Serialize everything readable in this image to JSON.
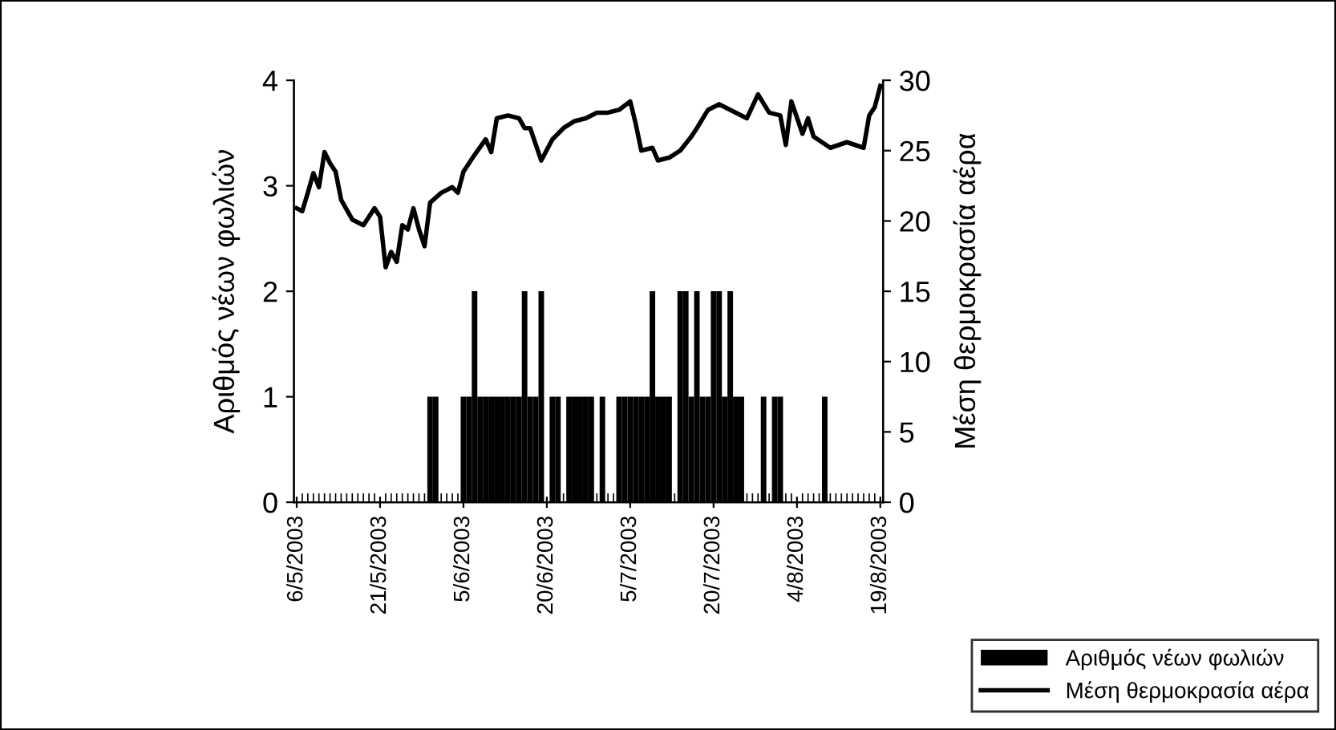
{
  "chart_data": {
    "type": "bar",
    "ylabel": "Αριθμός νέων φωλιών",
    "y2label": "Μέση θερμοκρασία αέρα",
    "x": [
      "2003-05-06",
      "2003-05-07",
      "2003-05-08",
      "2003-05-09",
      "2003-05-10",
      "2003-05-11",
      "2003-05-12",
      "2003-05-13",
      "2003-05-14",
      "2003-05-15",
      "2003-05-16",
      "2003-05-17",
      "2003-05-18",
      "2003-05-19",
      "2003-05-20",
      "2003-05-21",
      "2003-05-22",
      "2003-05-23",
      "2003-05-24",
      "2003-05-25",
      "2003-05-26",
      "2003-05-27",
      "2003-05-28",
      "2003-05-29",
      "2003-05-30",
      "2003-05-31",
      "2003-06-01",
      "2003-06-02",
      "2003-06-03",
      "2003-06-04",
      "2003-06-05",
      "2003-06-06",
      "2003-06-07",
      "2003-06-08",
      "2003-06-09",
      "2003-06-10",
      "2003-06-11",
      "2003-06-12",
      "2003-06-13",
      "2003-06-14",
      "2003-06-15",
      "2003-06-16",
      "2003-06-17",
      "2003-06-18",
      "2003-06-19",
      "2003-06-20",
      "2003-06-21",
      "2003-06-22",
      "2003-06-23",
      "2003-06-24",
      "2003-06-25",
      "2003-06-26",
      "2003-06-27",
      "2003-06-28",
      "2003-06-29",
      "2003-06-30",
      "2003-07-01",
      "2003-07-02",
      "2003-07-03",
      "2003-07-04",
      "2003-07-05",
      "2003-07-06",
      "2003-07-07",
      "2003-07-08",
      "2003-07-09",
      "2003-07-10",
      "2003-07-11",
      "2003-07-12",
      "2003-07-13",
      "2003-07-14",
      "2003-07-15",
      "2003-07-16",
      "2003-07-17",
      "2003-07-18",
      "2003-07-19",
      "2003-07-20",
      "2003-07-21",
      "2003-07-22",
      "2003-07-23",
      "2003-07-24",
      "2003-07-25",
      "2003-07-26",
      "2003-07-27",
      "2003-07-28",
      "2003-07-29",
      "2003-07-30",
      "2003-07-31",
      "2003-08-01",
      "2003-08-02",
      "2003-08-03",
      "2003-08-04",
      "2003-08-05",
      "2003-08-06",
      "2003-08-07",
      "2003-08-08",
      "2003-08-09",
      "2003-08-10",
      "2003-08-11",
      "2003-08-12",
      "2003-08-13",
      "2003-08-14",
      "2003-08-15",
      "2003-08-16",
      "2003-08-17",
      "2003-08-18",
      "2003-08-19"
    ],
    "series": [
      {
        "name": "Αριθμός νέων φωλιών",
        "color": "#000000",
        "values": [
          0,
          0,
          0,
          0,
          0,
          0,
          0,
          0,
          0,
          0,
          0,
          0,
          0,
          0,
          0,
          0,
          0,
          0,
          0,
          0,
          0,
          0,
          0,
          0,
          1,
          1,
          0,
          0,
          0,
          0,
          1,
          1,
          2,
          1,
          1,
          1,
          1,
          1,
          1,
          1,
          1,
          2,
          1,
          1,
          2,
          0,
          1,
          1,
          0,
          1,
          1,
          1,
          1,
          1,
          0,
          1,
          0,
          0,
          1,
          1,
          1,
          1,
          1,
          1,
          2,
          1,
          1,
          1,
          0,
          2,
          2,
          1,
          2,
          1,
          1,
          2,
          2,
          1,
          2,
          1,
          1,
          0,
          0,
          0,
          1,
          0,
          1,
          1,
          0,
          0,
          0,
          0,
          0,
          0,
          0,
          1,
          0,
          0,
          0,
          0,
          0,
          0,
          0,
          0,
          0,
          0
        ]
      },
      {
        "name": "Μέση θερμοκρασία αέρα",
        "type": "line",
        "axis": "y2",
        "color": "#000000",
        "x": [
          "2003-05-06",
          "2003-05-07",
          "2003-05-08",
          "2003-05-09",
          "2003-05-10",
          "2003-05-11",
          "2003-05-12",
          "2003-05-13",
          "2003-05-14",
          "2003-05-16",
          "2003-05-18",
          "2003-05-20",
          "2003-05-21",
          "2003-05-22",
          "2003-05-23",
          "2003-05-24",
          "2003-05-25",
          "2003-05-26",
          "2003-05-27",
          "2003-05-28",
          "2003-05-29",
          "2003-05-30",
          "2003-06-01",
          "2003-06-03",
          "2003-06-04",
          "2003-06-05",
          "2003-06-07",
          "2003-06-09",
          "2003-06-10",
          "2003-06-11",
          "2003-06-13",
          "2003-06-15",
          "2003-06-16",
          "2003-06-17",
          "2003-06-19",
          "2003-06-21",
          "2003-06-23",
          "2003-06-25",
          "2003-06-27",
          "2003-06-29",
          "2003-07-01",
          "2003-07-03",
          "2003-07-05",
          "2003-07-06",
          "2003-07-07",
          "2003-07-09",
          "2003-07-10",
          "2003-07-12",
          "2003-07-14",
          "2003-07-16",
          "2003-07-17",
          "2003-07-19",
          "2003-07-21",
          "2003-07-23",
          "2003-07-26",
          "2003-07-28",
          "2003-07-30",
          "2003-08-01",
          "2003-08-02",
          "2003-08-03",
          "2003-08-05",
          "2003-08-06",
          "2003-08-07",
          "2003-08-10",
          "2003-08-13",
          "2003-08-16",
          "2003-08-17",
          "2003-08-18",
          "2003-08-19"
        ],
        "values": [
          20.9,
          20.7,
          22.0,
          23.4,
          22.4,
          24.9,
          24.1,
          23.5,
          21.5,
          20.1,
          19.7,
          20.9,
          20.3,
          16.7,
          17.8,
          17.1,
          19.7,
          19.4,
          20.9,
          19.4,
          18.2,
          21.3,
          22.0,
          22.4,
          22.0,
          23.5,
          24.7,
          25.8,
          24.9,
          27.3,
          27.5,
          27.3,
          26.6,
          26.6,
          24.3,
          25.8,
          26.6,
          27.1,
          27.3,
          27.7,
          27.7,
          27.9,
          28.5,
          26.9,
          25.0,
          25.2,
          24.3,
          24.5,
          25.0,
          26.0,
          26.6,
          27.9,
          28.3,
          27.9,
          27.3,
          29.0,
          27.7,
          27.5,
          25.4,
          28.5,
          26.2,
          27.3,
          26.0,
          25.2,
          25.6,
          25.2,
          27.5,
          28.1,
          29.6
        ]
      }
    ],
    "xlim": [
      "2003-05-05T12:00",
      "2003-08-19T12:00"
    ],
    "xticks": [
      {
        "value": "2003-05-06",
        "label": "6/5/2003"
      },
      {
        "value": "2003-05-21",
        "label": "21/5/2003"
      },
      {
        "value": "2003-06-05",
        "label": "5/6/2003"
      },
      {
        "value": "2003-06-20",
        "label": "20/6/2003"
      },
      {
        "value": "2003-07-05",
        "label": "5/7/2003"
      },
      {
        "value": "2003-07-20",
        "label": "20/7/2003"
      },
      {
        "value": "2003-08-04",
        "label": "4/8/2003"
      },
      {
        "value": "2003-08-19",
        "label": "19/8/2003"
      }
    ],
    "ylim": [
      0,
      4
    ],
    "yticks": [
      0,
      1,
      2,
      3,
      4
    ],
    "y2lim": [
      0,
      30
    ],
    "y2ticks": [
      0,
      5,
      10,
      15,
      20,
      25,
      30
    ],
    "grid": false,
    "legend": "bottom right",
    "line_style": "solid"
  }
}
